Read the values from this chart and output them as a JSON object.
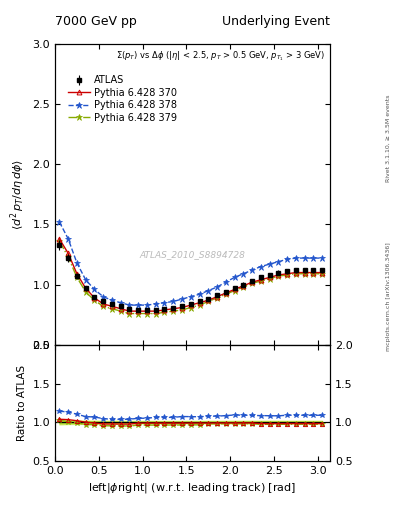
{
  "title_left": "7000 GeV pp",
  "title_right": "Underlying Event",
  "right_label_top": "Rivet 3.1.10, ≥ 3.5M events",
  "right_label_bot": "mcplots.cern.ch [arXiv:1306.3436]",
  "annotation": "Σ(p_T) vs Δφ (|η| < 2.5, p_T > 0.5 GeV, p_{T_1} > 3 GeV)",
  "watermark": "ATLAS_2010_S8894728",
  "xlabel": "left|φright| (w.r.t. leading track) [rad]",
  "ylabel_main": "⟨d² p_T/dηdφ⟩",
  "ylabel_ratio": "Ratio to ATLAS",
  "ylim_main": [
    0.5,
    3.0
  ],
  "ylim_ratio": [
    0.5,
    2.0
  ],
  "xlim": [
    0.0,
    3.14159
  ],
  "colors": {
    "atlas": "#000000",
    "p370": "#cc0000",
    "p378": "#2255cc",
    "p379": "#88aa00"
  },
  "atlas_x": [
    0.05,
    0.15,
    0.25,
    0.35,
    0.45,
    0.55,
    0.65,
    0.75,
    0.85,
    0.95,
    1.05,
    1.15,
    1.25,
    1.35,
    1.45,
    1.55,
    1.65,
    1.75,
    1.85,
    1.95,
    2.05,
    2.15,
    2.25,
    2.35,
    2.45,
    2.55,
    2.65,
    2.75,
    2.85,
    2.95,
    3.05
  ],
  "atlas_y": [
    1.33,
    1.22,
    1.07,
    0.97,
    0.9,
    0.86,
    0.84,
    0.82,
    0.8,
    0.79,
    0.79,
    0.79,
    0.8,
    0.81,
    0.82,
    0.84,
    0.86,
    0.88,
    0.91,
    0.94,
    0.97,
    1.0,
    1.03,
    1.06,
    1.08,
    1.1,
    1.11,
    1.12,
    1.12,
    1.12,
    1.12
  ],
  "atlas_yerr": [
    0.04,
    0.03,
    0.025,
    0.02,
    0.018,
    0.016,
    0.015,
    0.014,
    0.013,
    0.013,
    0.013,
    0.013,
    0.013,
    0.013,
    0.013,
    0.014,
    0.014,
    0.015,
    0.015,
    0.016,
    0.017,
    0.018,
    0.019,
    0.019,
    0.02,
    0.02,
    0.02,
    0.02,
    0.02,
    0.02,
    0.02
  ],
  "p370_y": [
    1.38,
    1.26,
    1.09,
    0.97,
    0.89,
    0.84,
    0.82,
    0.8,
    0.78,
    0.78,
    0.78,
    0.78,
    0.79,
    0.8,
    0.81,
    0.83,
    0.85,
    0.87,
    0.9,
    0.93,
    0.96,
    0.99,
    1.02,
    1.04,
    1.06,
    1.08,
    1.09,
    1.1,
    1.1,
    1.1,
    1.1
  ],
  "p378_y": [
    1.52,
    1.38,
    1.18,
    1.04,
    0.96,
    0.9,
    0.87,
    0.85,
    0.83,
    0.83,
    0.83,
    0.84,
    0.85,
    0.86,
    0.88,
    0.9,
    0.92,
    0.95,
    0.98,
    1.02,
    1.06,
    1.09,
    1.12,
    1.15,
    1.17,
    1.19,
    1.21,
    1.22,
    1.22,
    1.22,
    1.22
  ],
  "p379_y": [
    1.36,
    1.23,
    1.06,
    0.94,
    0.87,
    0.82,
    0.8,
    0.78,
    0.76,
    0.76,
    0.76,
    0.76,
    0.77,
    0.78,
    0.79,
    0.81,
    0.83,
    0.86,
    0.89,
    0.92,
    0.95,
    0.98,
    1.01,
    1.03,
    1.05,
    1.07,
    1.08,
    1.09,
    1.09,
    1.09,
    1.09
  ]
}
